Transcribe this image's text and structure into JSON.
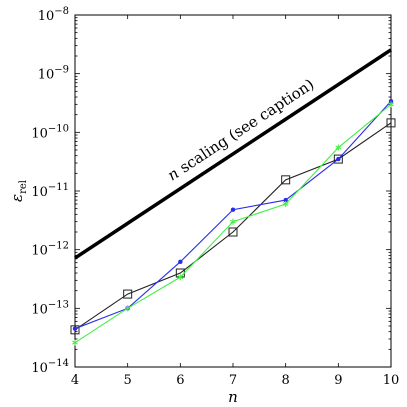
{
  "chart_data": {
    "type": "line",
    "title": "",
    "xlabel": "n",
    "ylabel": "ε",
    "ylabel_sub": "rel",
    "xlim": [
      4,
      10
    ],
    "ylim": [
      1e-14,
      1e-08
    ],
    "yscale": "log",
    "grid": false,
    "x_ticks": [
      4,
      5,
      6,
      7,
      8,
      9,
      10
    ],
    "y_tick_exponents": [
      -14,
      -13,
      -12,
      -11,
      -10,
      -9,
      -8
    ],
    "y_tick_base": "10",
    "annotation": {
      "italic_part": "n",
      "rest": " scaling (see caption)"
    },
    "reference_line": {
      "x": [
        4,
        10
      ],
      "y": [
        7.2e-13,
        2.55e-09
      ],
      "color": "#000000"
    },
    "series": [
      {
        "marker": "square",
        "color": "#222222",
        "x": [
          4,
          5,
          6,
          7,
          8,
          9,
          10
        ],
        "y": [
          4.3e-14,
          1.75e-13,
          4e-13,
          2e-12,
          1.55e-11,
          3.5e-11,
          1.45e-10
        ]
      },
      {
        "marker": "dot",
        "color": "#2a2aee",
        "x": [
          4,
          5,
          6,
          7,
          8,
          9,
          10
        ],
        "y": [
          4.5e-14,
          1e-13,
          6.2e-13,
          4.8e-12,
          7e-12,
          3.5e-11,
          3.4e-10
        ]
      },
      {
        "marker": "star",
        "color": "#44ee44",
        "x": [
          4,
          5,
          6,
          7,
          8,
          9,
          10
        ],
        "y": [
          2.6e-14,
          1e-13,
          3.4e-13,
          3e-12,
          6e-12,
          5.5e-11,
          3e-10
        ]
      }
    ]
  }
}
